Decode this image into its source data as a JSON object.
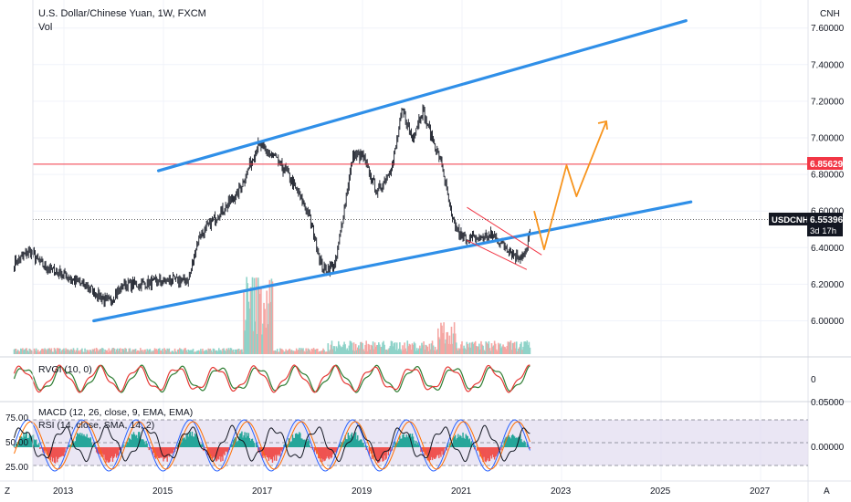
{
  "header": {
    "title": "U.S. Dollar/Chinese Yuan, 1W, FXCM",
    "volume_label": "Vol"
  },
  "price_axis": {
    "unit": "CNH",
    "ticks": [
      "7.60000",
      "7.40000",
      "7.20000",
      "7.00000",
      "6.80000",
      "6.60000",
      "6.40000",
      "6.20000",
      "6.00000"
    ],
    "marker_red": "6.85629",
    "marker_symbol": "USDCNH",
    "marker_last": "6.55396",
    "marker_countdown": "3d 17h"
  },
  "rvgi_panel": {
    "label": "RVGI (10, 0)",
    "axis_tick": "0"
  },
  "macd_panel": {
    "label": "MACD (12, 26, close, 9, EMA, EMA)",
    "rsi_label": "RSI (14, close, SMA, 14, 2)",
    "left_ticks": [
      "75.00",
      "50.00",
      "25.00"
    ],
    "right_ticks": [
      "0.05000",
      "0.00000"
    ]
  },
  "time_axis": {
    "ticks": [
      "2013",
      "2015",
      "2017",
      "2019",
      "2021",
      "2023",
      "2025",
      "2027"
    ],
    "left_button": "Z",
    "right_button": "A"
  },
  "colors": {
    "trendline": "#2f8fe8",
    "forecast": "#f7941d",
    "resistance": "#f23645",
    "candle": "#131722",
    "vol_up": "#8fd3c9",
    "vol_down": "#f5a6a3",
    "rvgi_fast": "#2e7d32",
    "rvgi_slow": "#e53935",
    "macd_line": "#2962ff",
    "signal_line": "#ff6d00",
    "rsi_line": "#131722",
    "rsi_band": "#e1dcef"
  },
  "chart_data": {
    "type": "line",
    "title": "U.S. Dollar/Chinese Yuan, 1W, FXCM",
    "symbol": "USDCNH",
    "x_ticks": [
      "2013",
      "2015",
      "2017",
      "2019",
      "2021",
      "2023",
      "2025",
      "2027"
    ],
    "ylim": [
      5.8,
      7.75
    ],
    "price_path": {
      "x": [
        2012.0,
        2012.3,
        2012.6,
        2013.0,
        2013.5,
        2013.9,
        2014.2,
        2014.6,
        2015.0,
        2015.5,
        2015.7,
        2016.0,
        2016.5,
        2016.9,
        2017.2,
        2017.5,
        2017.9,
        2018.2,
        2018.45,
        2018.8,
        2019.0,
        2019.3,
        2019.6,
        2019.8,
        2020.0,
        2020.2,
        2020.4,
        2020.6,
        2020.8,
        2021.0,
        2021.3,
        2021.6,
        2021.9,
        2022.1,
        2022.3,
        2022.38
      ],
      "y": [
        6.31,
        6.38,
        6.3,
        6.25,
        6.18,
        6.1,
        6.2,
        6.2,
        6.22,
        6.22,
        6.45,
        6.55,
        6.7,
        6.96,
        6.9,
        6.8,
        6.6,
        6.28,
        6.3,
        6.9,
        6.9,
        6.7,
        6.85,
        7.15,
        7.0,
        7.15,
        7.0,
        6.85,
        6.55,
        6.45,
        6.45,
        6.47,
        6.4,
        6.35,
        6.37,
        6.55
      ]
    },
    "annotations": {
      "upper_channel": {
        "x": [
          2014.9,
          2025.5
        ],
        "y": [
          6.82,
          7.64
        ]
      },
      "lower_channel": {
        "x": [
          2013.6,
          2025.6
        ],
        "y": [
          6.0,
          6.65
        ]
      },
      "resistance_level": 6.85629,
      "wedge_upper": {
        "x": [
          2021.1,
          2022.6
        ],
        "y": [
          6.62,
          6.36
        ]
      },
      "wedge_lower": {
        "x": [
          2021.1,
          2022.3
        ],
        "y": [
          6.44,
          6.28
        ]
      },
      "forecast_path": {
        "x": [
          2022.45,
          2022.65,
          2023.1,
          2023.3,
          2023.9
        ],
        "y": [
          6.6,
          6.39,
          6.85,
          6.68,
          7.09
        ]
      }
    },
    "last_price": 6.55396,
    "rsi_levels": [
      75,
      50,
      25
    ]
  }
}
